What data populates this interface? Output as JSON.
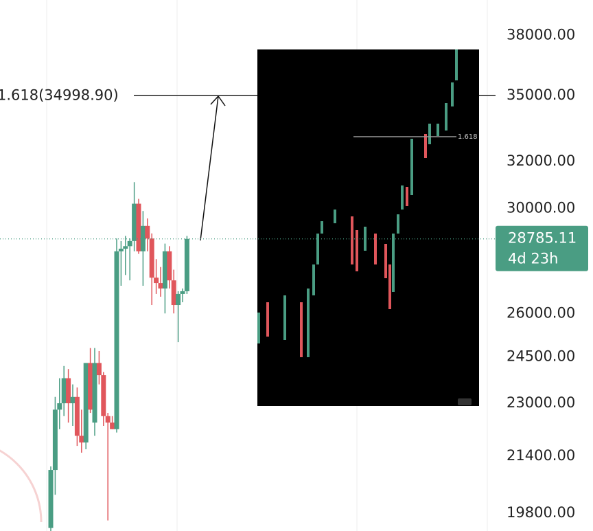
{
  "chart_data": {
    "type": "candlestick",
    "log_scale": true,
    "grid": true,
    "ylim": [
      19320,
      39880
    ],
    "yticks": [
      {
        "value": 38000,
        "label": "38000.00"
      },
      {
        "value": 35000,
        "label": "35000.00"
      },
      {
        "value": 32000,
        "label": "32000.00"
      },
      {
        "value": 30000,
        "label": "30000.00"
      },
      {
        "value": 26000,
        "label": "26000.00"
      },
      {
        "value": 24500,
        "label": "24500.00"
      },
      {
        "value": 23000,
        "label": "23000.00"
      },
      {
        "value": 21400,
        "label": "21400.00"
      },
      {
        "value": 19800,
        "label": "19800.00"
      }
    ],
    "up_color": "#4a9d83",
    "down_color": "#e0565b",
    "open": [
      19400,
      21000,
      22800,
      23000,
      23800,
      23000,
      23200,
      22000,
      21800,
      24300,
      22400,
      24300,
      23900,
      22600,
      22400,
      22200,
      28300,
      28400,
      28500,
      28700,
      30200,
      28300,
      29300,
      28800,
      27300,
      27100,
      26900,
      28300,
      27200,
      26300,
      26700,
      26800
    ],
    "high": [
      21100,
      23200,
      23800,
      24200,
      24100,
      23600,
      23500,
      22800,
      24300,
      24800,
      24800,
      24700,
      24000,
      22700,
      22600,
      28800,
      28700,
      28900,
      28800,
      31100,
      30400,
      29900,
      29600,
      29000,
      28000,
      27700,
      28600,
      28500,
      27600,
      26800,
      26900,
      28900
    ],
    "low": [
      19300,
      20300,
      22200,
      22600,
      22400,
      22300,
      21700,
      21500,
      21600,
      22700,
      22000,
      23600,
      22300,
      19600,
      22200,
      22100,
      27000,
      27400,
      27200,
      28300,
      28200,
      27000,
      28300,
      26300,
      26700,
      26600,
      26000,
      26900,
      26000,
      25000,
      26400,
      26700
    ],
    "close": [
      21000,
      22800,
      23000,
      23800,
      23000,
      23200,
      22000,
      21800,
      24300,
      22800,
      24300,
      23900,
      22600,
      22400,
      22200,
      28300,
      28400,
      28500,
      28700,
      30200,
      28300,
      29300,
      28800,
      27300,
      27100,
      26900,
      28300,
      27200,
      26300,
      26700,
      26800,
      28785.11
    ],
    "current_price": 28785.11,
    "countdown": "4d 23h",
    "fib_level": 34998.9,
    "fib_label": "1.618(34998.90)",
    "inset_label": "1.618"
  }
}
